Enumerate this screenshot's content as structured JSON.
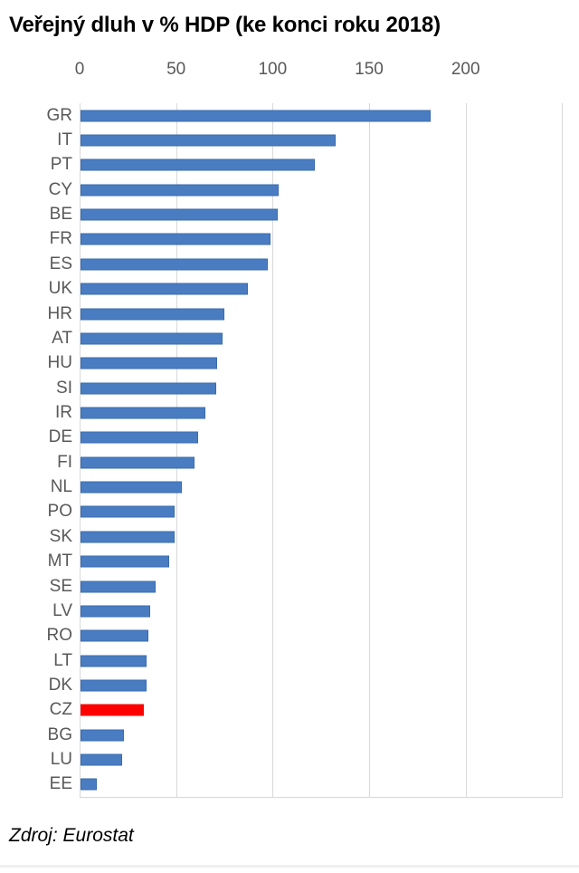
{
  "title": "Veřejný dluh v % HDP (ke konci roku 2018)",
  "source": "Zdroj: Eurostat",
  "colors": {
    "bar": "#4a7cc2",
    "bar_border": "#3a6cae",
    "highlight": "#ff0000",
    "gridline": "#d9d9d9",
    "axis_text": "#595959",
    "title_text": "#000000"
  },
  "chart_data": {
    "type": "bar",
    "orientation": "horizontal",
    "title": "Veřejný dluh v % HDP (ke konci roku 2018)",
    "xlabel": "",
    "ylabel": "",
    "xlim": [
      0,
      250
    ],
    "x_ticks": [
      0,
      50,
      100,
      150,
      200
    ],
    "grid": true,
    "legend": false,
    "source": "Zdroj: Eurostat",
    "highlight_category": "CZ",
    "highlight_color": "#ff0000",
    "categories": [
      "GR",
      "IT",
      "PT",
      "CY",
      "BE",
      "FR",
      "ES",
      "UK",
      "HR",
      "AT",
      "HU",
      "SI",
      "IR",
      "DE",
      "FI",
      "NL",
      "PO",
      "SK",
      "MT",
      "SE",
      "LV",
      "RO",
      "LT",
      "DK",
      "CZ",
      "BG",
      "LU",
      "EE"
    ],
    "values": [
      181.2,
      132.2,
      121.5,
      102.5,
      102.0,
      98.4,
      97.1,
      86.8,
      74.6,
      73.8,
      70.8,
      70.1,
      64.8,
      60.9,
      58.9,
      52.4,
      48.9,
      48.9,
      46.0,
      38.8,
      35.9,
      35.0,
      34.2,
      34.1,
      32.7,
      22.6,
      21.4,
      8.4
    ]
  }
}
